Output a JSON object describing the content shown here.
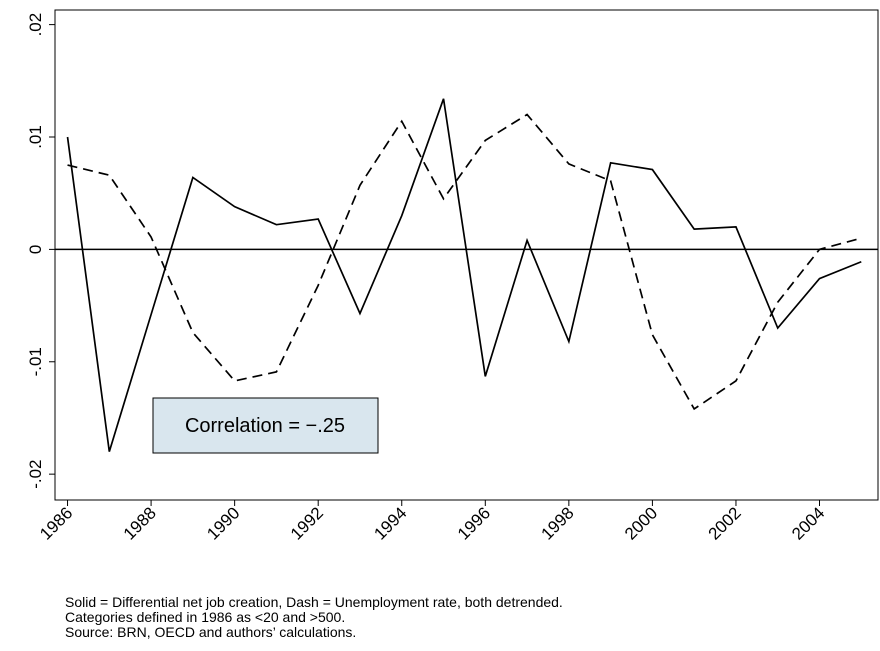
{
  "chart_data": {
    "type": "line",
    "x": [
      1986,
      1987,
      1988,
      1989,
      1990,
      1991,
      1992,
      1993,
      1994,
      1995,
      1996,
      1997,
      1998,
      1999,
      2000,
      2001,
      2002,
      2003,
      2004,
      2005
    ],
    "series": [
      {
        "color": "#000000",
        "dashed": false,
        "values": [
          0.01,
          -0.018,
          -0.0058,
          0.0064,
          0.0038,
          0.0022,
          0.0027,
          -0.0057,
          0.003,
          0.0134,
          -0.0113,
          0.0008,
          -0.0082,
          0.0077,
          0.0071,
          0.0018,
          0.002,
          -0.007,
          -0.0026,
          -0.0011
        ]
      },
      {
        "color": "#000000",
        "dashed": true,
        "values": [
          0.0075,
          0.0066,
          0.0011,
          -0.0074,
          -0.0117,
          -0.0109,
          -0.0032,
          0.0057,
          0.0114,
          0.0045,
          0.0097,
          0.012,
          0.0076,
          0.0061,
          -0.0076,
          -0.0142,
          -0.0117,
          -0.0047,
          0.0,
          0.001
        ]
      }
    ],
    "xlim": [
      1985.7,
      2005.4
    ],
    "ylim": [
      -0.0223,
      0.0213
    ],
    "xticks": [
      1986,
      1988,
      1990,
      1992,
      1994,
      1996,
      1998,
      2000,
      2002,
      2004
    ],
    "yticks": [
      {
        "value": -0.02,
        "label": "-.02"
      },
      {
        "value": -0.01,
        "label": "-.01"
      },
      0,
      {
        "value": 0.01,
        "label": ".01"
      },
      {
        "value": 0.02,
        "label": ".02"
      }
    ],
    "reference_line": 0,
    "annotation": "Correlation = −.25",
    "notes": [
      "Solid = Differential net job creation, Dash = Unemployment rate, both detrended.",
      "Categories defined in 1986 as <20 and >500.",
      "Source: BRN, OECD and authors’ calculations."
    ]
  }
}
